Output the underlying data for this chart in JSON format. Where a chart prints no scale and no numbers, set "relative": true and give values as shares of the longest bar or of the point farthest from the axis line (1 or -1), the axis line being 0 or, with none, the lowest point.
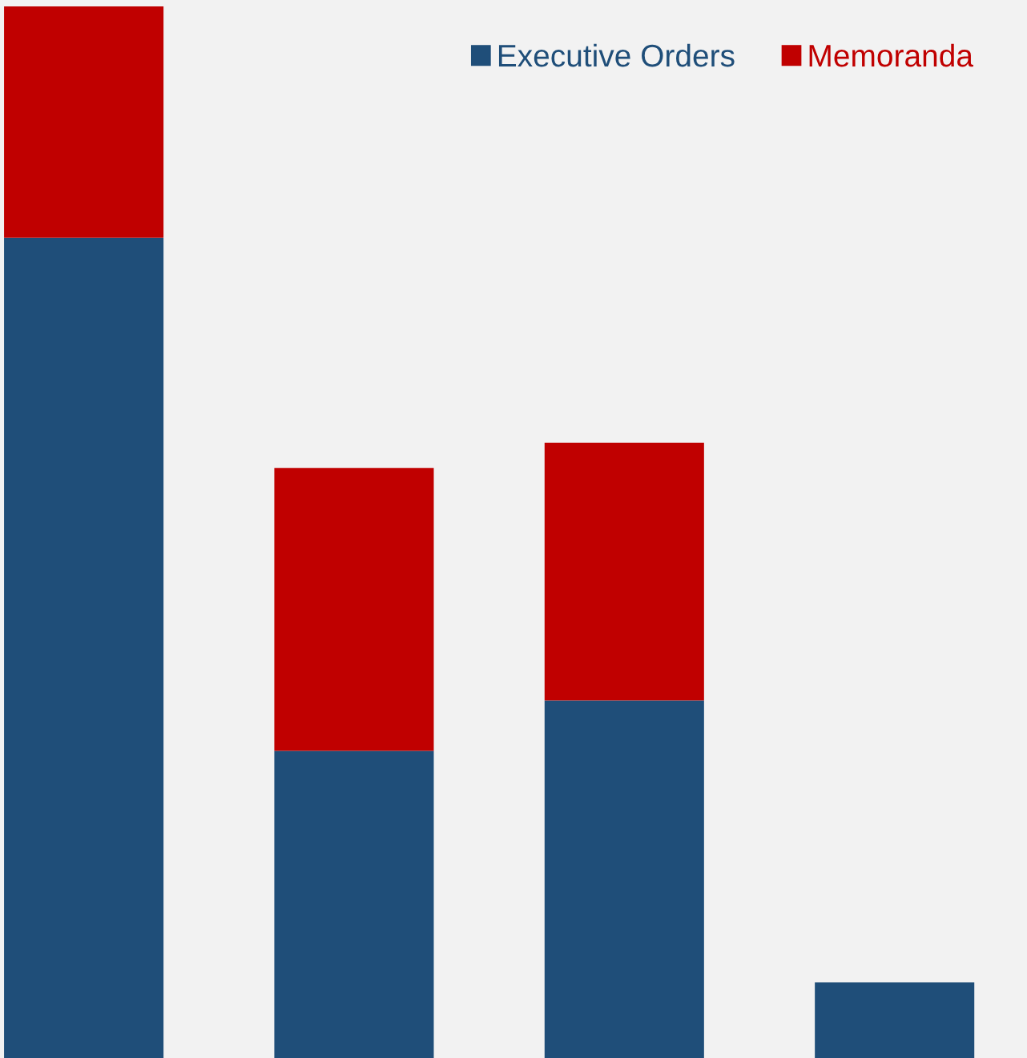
{
  "chart_data": {
    "type": "bar",
    "stacked": true,
    "relative": true,
    "categories": [
      null,
      null,
      null,
      null
    ],
    "series": [
      {
        "name": "Executive Orders",
        "color": "#1f4e79",
        "values": [
          0.78,
          0.292,
          0.34,
          0.072
        ]
      },
      {
        "name": "Memoranda",
        "color": "#c00000",
        "values": [
          0.22,
          0.269,
          0.245,
          null
        ]
      }
    ],
    "legend": "top right",
    "grid": false
  }
}
